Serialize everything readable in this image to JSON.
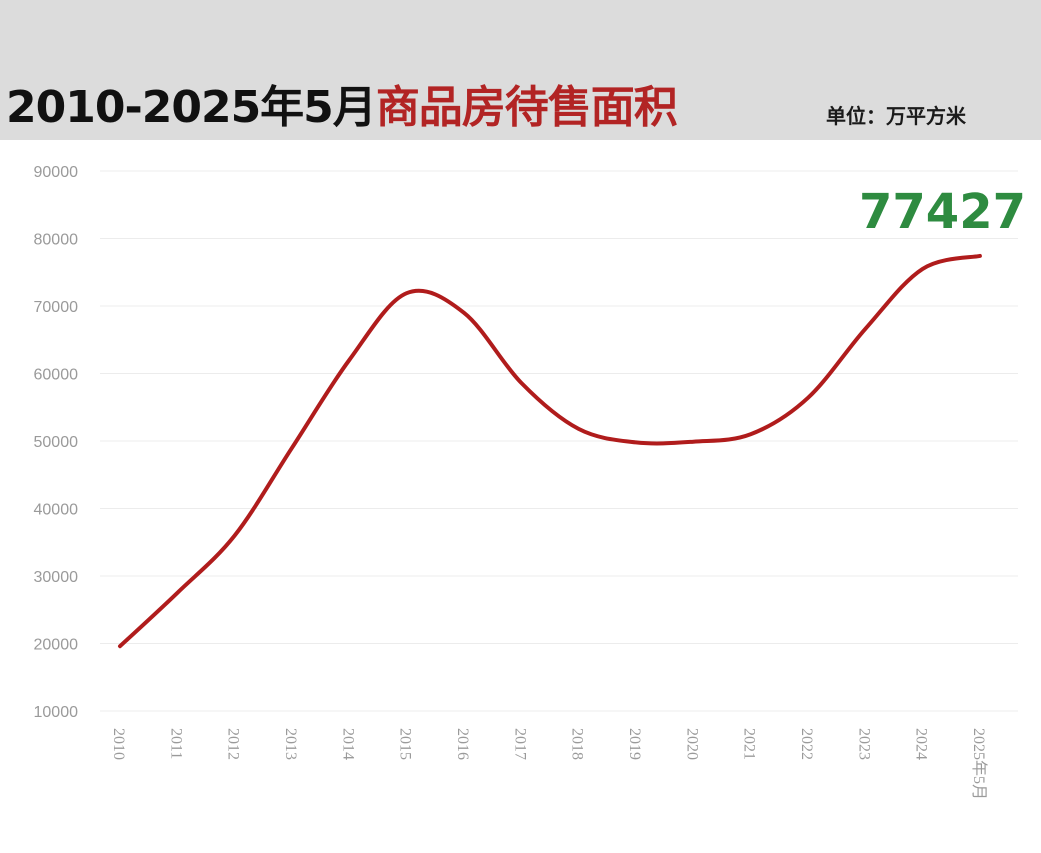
{
  "header": {
    "title_part1": "2010-2025年5月",
    "title_part2": "商品房待售面积",
    "unit": "单位：万平方米"
  },
  "colors": {
    "line": "#b01c1c",
    "title_accent": "#b22424",
    "highlight": "#2e8b40",
    "grid": "#ececec"
  },
  "chart_data": {
    "type": "line",
    "title": "2010-2025年5月商品房待售面积",
    "ylabel": "单位：万平方米",
    "categories": [
      "2010",
      "2011",
      "2012",
      "2013",
      "2014",
      "2015",
      "2016",
      "2017",
      "2018",
      "2019",
      "2020",
      "2021",
      "2022",
      "2023",
      "2024",
      "2025年5月"
    ],
    "values": [
      19600,
      27500,
      36000,
      49000,
      62000,
      71900,
      69000,
      58600,
      51800,
      49800,
      49900,
      51000,
      56400,
      66600,
      75500,
      77427
    ],
    "ylim": [
      10000,
      90000
    ],
    "yticks": [
      "90000",
      "80000",
      "70000",
      "60000",
      "50000",
      "40000",
      "30000",
      "20000",
      "10000"
    ],
    "grid": "horizontal",
    "highlight_label": "77427"
  }
}
